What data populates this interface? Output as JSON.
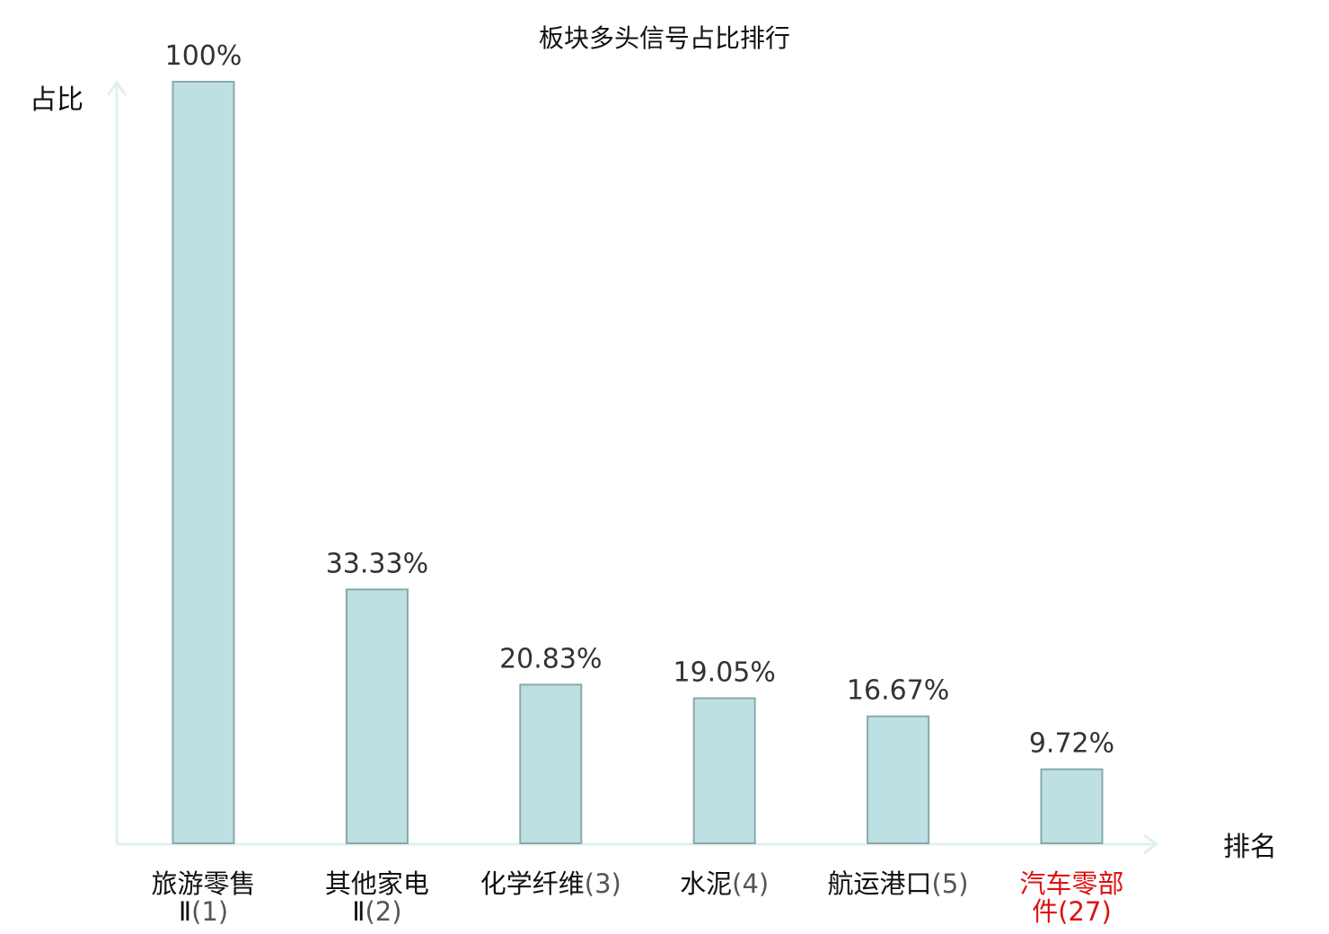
{
  "chart_data": {
    "type": "bar",
    "title": "板块多头信号占比排行",
    "ylabel": "占比",
    "xlabel": "排名",
    "ylim": [
      0,
      100
    ],
    "grid": false,
    "categories": [
      {
        "line1": "旅游零售",
        "line2": "Ⅱ(1)",
        "highlight": false
      },
      {
        "line1": "其他家电",
        "line2": "Ⅱ(2)",
        "highlight": false
      },
      {
        "line1": "化学纤维(3)",
        "line2": "",
        "highlight": false
      },
      {
        "line1": "水泥(4)",
        "line2": "",
        "highlight": false
      },
      {
        "line1": "航运港口(5)",
        "line2": "",
        "highlight": false
      },
      {
        "line1": "汽车零部",
        "line2": "件(27)",
        "highlight": true
      }
    ],
    "values": [
      100,
      33.33,
      20.83,
      19.05,
      16.67,
      9.72
    ],
    "value_labels": [
      "100%",
      "33.33%",
      "20.83%",
      "19.05%",
      "16.67%",
      "9.72%"
    ],
    "colors": {
      "bar_fill": "#bde0e3",
      "bar_stroke": "#8aa8ab",
      "axis": "#dff1ef",
      "highlight_text": "#dd1111",
      "category_text": "#111111",
      "category_paren": "#555555"
    }
  }
}
